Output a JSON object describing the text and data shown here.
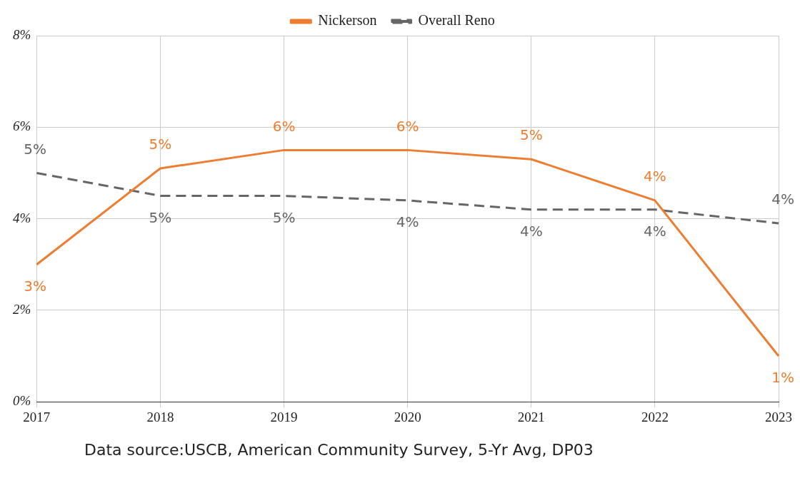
{
  "chart_data": {
    "type": "line",
    "categories": [
      "2017",
      "2018",
      "2019",
      "2020",
      "2021",
      "2022",
      "2023"
    ],
    "series": [
      {
        "name": "Nickerson",
        "color": "#ed7d31",
        "line_style": "solid",
        "values": [
          3.0,
          5.1,
          5.5,
          5.5,
          5.3,
          4.4,
          1.0
        ],
        "value_labels": [
          "3%",
          "5%",
          "6%",
          "6%",
          "5%",
          "4%",
          "1%"
        ]
      },
      {
        "name": "Overall Reno",
        "color": "#666666",
        "line_style": "dashed",
        "values": [
          5.0,
          4.5,
          4.5,
          4.4,
          4.2,
          4.2,
          3.9
        ],
        "value_labels": [
          "5%",
          "5%",
          "5%",
          "4%",
          "4%",
          "4%",
          "4%"
        ]
      }
    ],
    "ylim": [
      0,
      8
    ],
    "yticks": [
      {
        "value": 0,
        "label": "0%"
      },
      {
        "value": 2,
        "label": "2%"
      },
      {
        "value": 4,
        "label": "4%"
      },
      {
        "value": 6,
        "label": "6%"
      },
      {
        "value": 8,
        "label": "8%"
      }
    ],
    "grid": true,
    "legend": "top",
    "marker": "none",
    "annotations": [
      "Data source:USCB, American Community Survey, 5-Yr Avg, DP03"
    ]
  }
}
